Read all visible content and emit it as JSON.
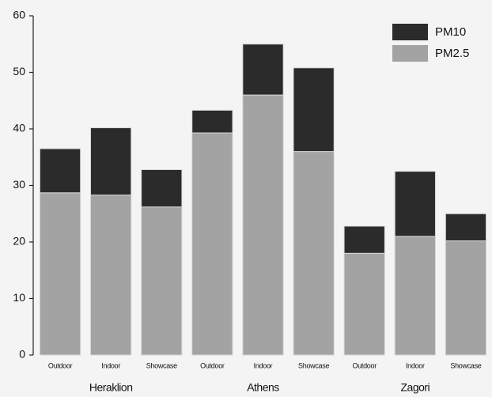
{
  "chart_data": {
    "type": "stacked-bar",
    "categories": [
      "Outdoor",
      "Indoor",
      "Showcase",
      "Outdoor",
      "Indoor",
      "Showcase",
      "Outdoor",
      "Indoor",
      "Showcase"
    ],
    "groups": [
      "Heraklion",
      "Athens",
      "Zagori"
    ],
    "series": [
      {
        "name": "PM2.5",
        "color": "#a3a3a3",
        "values": [
          28.7,
          28.3,
          26.2,
          39.3,
          46.0,
          36.0,
          18.0,
          21.0,
          20.2
        ]
      },
      {
        "name": "PM10",
        "color": "#2b2b2b",
        "values": [
          7.8,
          11.9,
          6.6,
          4.0,
          9.0,
          14.8,
          4.8,
          11.5,
          4.8
        ]
      }
    ],
    "legend_order": [
      1,
      0
    ],
    "legend": "upper right",
    "ylim": [
      0,
      60
    ],
    "yticks": [
      0,
      10,
      20,
      30,
      40,
      50,
      60
    ],
    "grid": false
  }
}
